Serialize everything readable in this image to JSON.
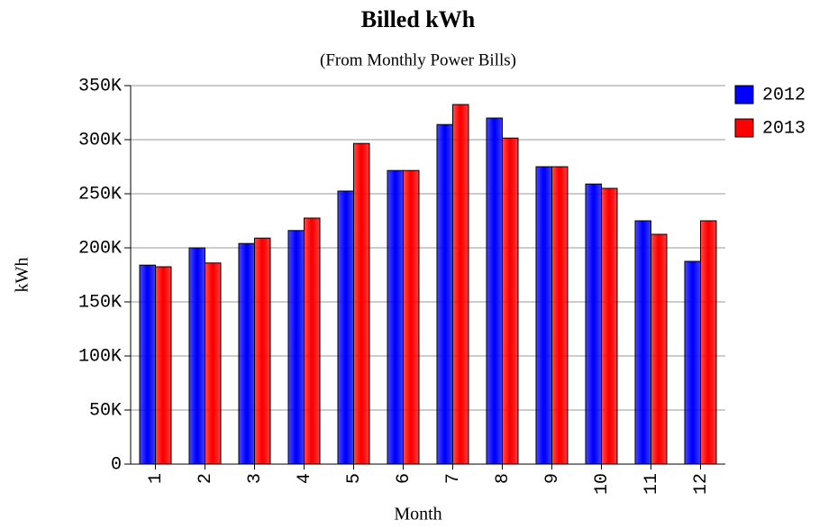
{
  "chart_data": {
    "type": "bar",
    "title": "Billed kWh",
    "subtitle": "(From Monthly Power Bills)",
    "x_label": "Month",
    "y_label": "kWh",
    "categories": [
      "1",
      "2",
      "3",
      "4",
      "5",
      "6",
      "7",
      "8",
      "9",
      "10",
      "11",
      "12"
    ],
    "series": [
      {
        "name": "2012",
        "color": "#0000ff",
        "values": [
          184000,
          200000,
          204000,
          216000,
          252500,
          271500,
          314000,
          320000,
          275000,
          259000,
          225000,
          187500
        ]
      },
      {
        "name": "2013",
        "color": "#ff0000",
        "values": [
          182500,
          186000,
          209000,
          227500,
          296500,
          271500,
          332500,
          301500,
          275000,
          255000,
          212500,
          225000
        ]
      }
    ],
    "ylim": [
      0,
      350000
    ],
    "yticks": [
      0,
      {
        "value": 50000,
        "label": "50K"
      },
      {
        "value": 100000,
        "label": "100K"
      },
      {
        "value": 150000,
        "label": "150K"
      },
      {
        "value": 200000,
        "label": "200K"
      },
      {
        "value": 250000,
        "label": "250K"
      },
      {
        "value": 300000,
        "label": "300K"
      },
      {
        "value": 350000,
        "label": "350K"
      }
    ],
    "grid": true,
    "legend": "top-right"
  }
}
